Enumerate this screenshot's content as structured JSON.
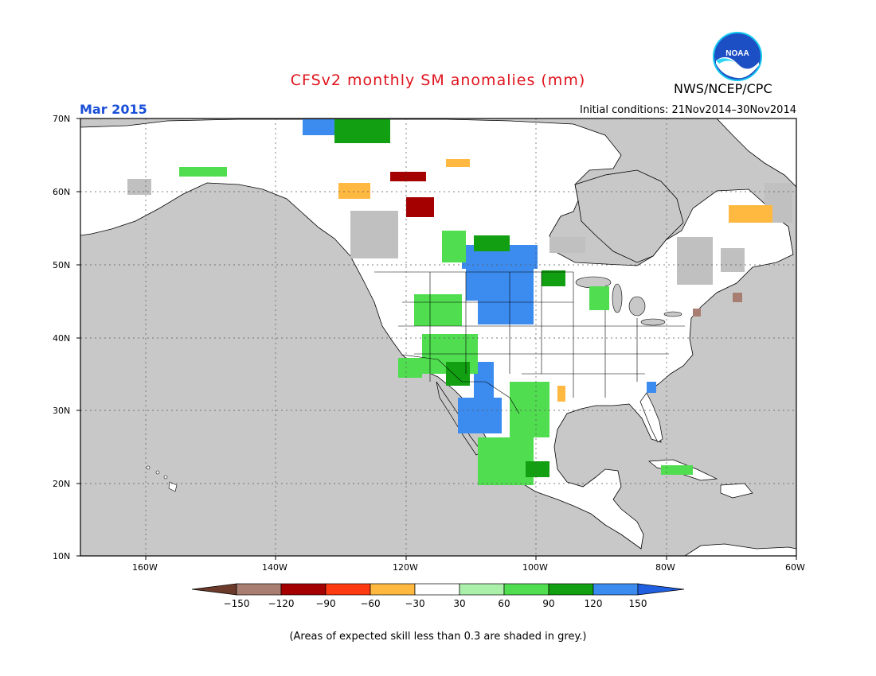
{
  "header": {
    "title": "CFSv2 monthly SM anomalies (mm)",
    "agency": "NWS/NCEP/CPC",
    "logo_text": "NOAA",
    "month": "Mar 2015",
    "initial_conditions": "Initial conditions: 21Nov2014–30Nov2014"
  },
  "map": {
    "lat_labels": [
      "70N",
      "60N",
      "50N",
      "40N",
      "30N",
      "20N",
      "10N"
    ],
    "lon_labels": [
      "160W",
      "140W",
      "120W",
      "100W",
      "80W",
      "60W"
    ],
    "ocean_color": "#c8c8c8",
    "land_color": "#ffffff",
    "skill_grey_color": "#c0c0c0"
  },
  "colorbar": {
    "ticks": [
      "−150",
      "−120",
      "−90",
      "−60",
      "−30",
      "30",
      "60",
      "90",
      "120",
      "150"
    ],
    "colors": [
      "#6b3a2a",
      "#a87e73",
      "#a50000",
      "#ff3a10",
      "#ffb840",
      "#ffffff",
      "#aaf0aa",
      "#50dd50",
      "#12a012",
      "#3c8cf0",
      "#1f5fe0"
    ]
  },
  "footnote": "(Areas of expected skill less than 0.3 are shaded in grey.)"
}
